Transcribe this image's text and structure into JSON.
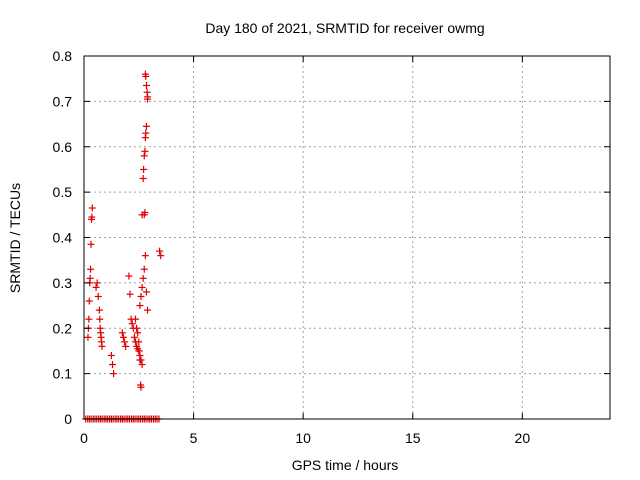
{
  "chart_data": {
    "type": "scatter",
    "title": "Day 180 of 2021, SRMTID for receiver owmg",
    "xlabel": "GPS time / hours",
    "ylabel": "SRMTID / TECUs",
    "xlim": [
      0,
      24
    ],
    "ylim": [
      0,
      0.8
    ],
    "xticks": [
      0,
      5,
      10,
      15,
      20
    ],
    "yticks": [
      0,
      0.1,
      0.2,
      0.3,
      0.4,
      0.5,
      0.6,
      0.7,
      0.8
    ],
    "xtick_labels": [
      "0",
      "5",
      "10",
      "15",
      "20"
    ],
    "ytick_labels": [
      "0",
      "0.1",
      "0.2",
      "0.3",
      "0.4",
      "0.5",
      "0.6",
      "0.7",
      "0.8"
    ],
    "grid": true,
    "marker": "plus",
    "marker_color": "#e00000",
    "series": [
      {
        "x": [
          0.08,
          0.17,
          0.25,
          0.33,
          0.42,
          0.5,
          0.58,
          0.67,
          0.75,
          0.83,
          0.92,
          1.0,
          1.08,
          1.17,
          1.25,
          1.33,
          1.42,
          1.5,
          1.58,
          1.67,
          1.75,
          1.83,
          1.92,
          2.0,
          2.08,
          2.17,
          2.25,
          2.33,
          2.42,
          2.5,
          2.58,
          2.67,
          2.75,
          2.83,
          2.92,
          3.0,
          3.08,
          3.17,
          3.25,
          3.33,
          3.42,
          0.18,
          0.2,
          0.22,
          0.24,
          0.26,
          0.28,
          0.3,
          0.32,
          0.34,
          0.36,
          0.38,
          0.55,
          0.6,
          0.65,
          0.7,
          0.72,
          0.74,
          0.76,
          0.78,
          0.8,
          0.82,
          1.25,
          1.3,
          1.35,
          1.75,
          1.8,
          1.85,
          1.9,
          2.05,
          2.1,
          2.15,
          2.2,
          2.25,
          2.3,
          2.35,
          2.4,
          2.45,
          2.5,
          2.55,
          2.6,
          2.65,
          2.55,
          2.6,
          2.65,
          2.7,
          2.75,
          2.8,
          2.85,
          2.9,
          2.65,
          2.7,
          2.72,
          2.75,
          2.78,
          2.8,
          2.82,
          2.85,
          2.9,
          2.35,
          2.4,
          2.45,
          2.5,
          2.52,
          2.55,
          2.58,
          2.6,
          3.45,
          3.5
        ],
        "y": [
          0,
          0,
          0,
          0,
          0,
          0,
          0,
          0,
          0,
          0,
          0,
          0,
          0,
          0,
          0,
          0,
          0,
          0,
          0,
          0,
          0,
          0,
          0,
          0,
          0,
          0,
          0,
          0,
          0,
          0,
          0,
          0,
          0,
          0,
          0,
          0,
          0,
          0,
          0,
          0,
          0,
          0.18,
          0.2,
          0.22,
          0.26,
          0.3,
          0.31,
          0.33,
          0.385,
          0.44,
          0.445,
          0.465,
          0.29,
          0.3,
          0.27,
          0.24,
          0.22,
          0.2,
          0.19,
          0.18,
          0.17,
          0.16,
          0.14,
          0.12,
          0.1,
          0.19,
          0.18,
          0.17,
          0.16,
          0.315,
          0.275,
          0.22,
          0.21,
          0.2,
          0.18,
          0.17,
          0.16,
          0.155,
          0.15,
          0.14,
          0.13,
          0.12,
          0.25,
          0.27,
          0.29,
          0.31,
          0.33,
          0.36,
          0.28,
          0.24,
          0.45,
          0.53,
          0.55,
          0.58,
          0.59,
          0.62,
          0.63,
          0.645,
          0.71,
          0.22,
          0.2,
          0.19,
          0.17,
          0.15,
          0.13,
          0.075,
          0.07,
          0.37,
          0.36
        ]
      }
    ],
    "extra_points": {
      "x": [
        2.8,
        2.82,
        2.85,
        2.88,
        2.9,
        2.78,
        2.75
      ],
      "y": [
        0.76,
        0.755,
        0.735,
        0.72,
        0.705,
        0.455,
        0.45
      ]
    }
  }
}
